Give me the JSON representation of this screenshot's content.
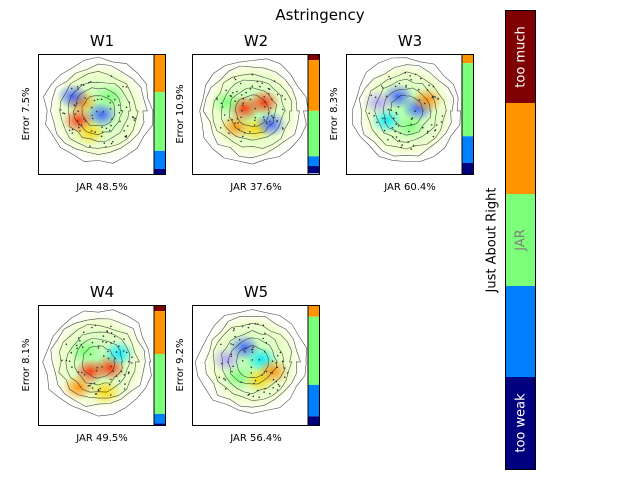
{
  "title": "Astringency",
  "colors": {
    "too_weak": "#00007f",
    "weak": "#0080ff",
    "jar": "#7cff79",
    "strong": "#ff9400",
    "too_much": "#7f0000"
  },
  "colorbar": {
    "axis_label": "Just About Right",
    "segments": [
      {
        "label": "too much",
        "color": "#7f0000",
        "text_color": "#ffffff"
      },
      {
        "label": "",
        "color": "#ff9400",
        "text_color": "#ffffff"
      },
      {
        "label": "JAR",
        "color": "#7cff79",
        "text_color": "#808080"
      },
      {
        "label": "",
        "color": "#0080ff",
        "text_color": "#ffffff"
      },
      {
        "label": "too weak",
        "color": "#00007f",
        "text_color": "#ffffff"
      }
    ]
  },
  "chart_data": [
    {
      "type": "heatmap",
      "title": "W1",
      "xlabel": "JAR 48.5%",
      "ylabel": "Error 7.5%",
      "jar_percent": 48.5,
      "error_percent": 7.5,
      "bar_fractions": {
        "too_weak": 0.05,
        "weak": 0.15,
        "jar": 0.485,
        "strong": 0.315,
        "too_much": 0.0
      }
    },
    {
      "type": "heatmap",
      "title": "W2",
      "xlabel": "JAR 37.6%",
      "ylabel": "Error 10.9%",
      "jar_percent": 37.6,
      "error_percent": 10.9,
      "bar_fractions": {
        "too_weak": 0.06,
        "weak": 0.08,
        "jar": 0.376,
        "strong": 0.42,
        "too_much": 0.05
      }
    },
    {
      "type": "heatmap",
      "title": "W3",
      "xlabel": "JAR 60.4%",
      "ylabel": "Error 8.3%",
      "jar_percent": 60.4,
      "error_percent": 8.3,
      "bar_fractions": {
        "too_weak": 0.1,
        "weak": 0.22,
        "jar": 0.604,
        "strong": 0.076,
        "too_much": 0.0
      }
    },
    {
      "type": "heatmap",
      "title": "W4",
      "xlabel": "JAR 49.5%",
      "ylabel": "Error 8.1%",
      "jar_percent": 49.5,
      "error_percent": 8.1,
      "bar_fractions": {
        "too_weak": 0.02,
        "weak": 0.08,
        "jar": 0.495,
        "strong": 0.355,
        "too_much": 0.05
      }
    },
    {
      "type": "heatmap",
      "title": "W5",
      "xlabel": "JAR 56.4%",
      "ylabel": "Error 9.2%",
      "jar_percent": 56.4,
      "error_percent": 9.2,
      "bar_fractions": {
        "too_weak": 0.08,
        "weak": 0.26,
        "jar": 0.564,
        "strong": 0.096,
        "too_much": 0.0
      }
    }
  ]
}
